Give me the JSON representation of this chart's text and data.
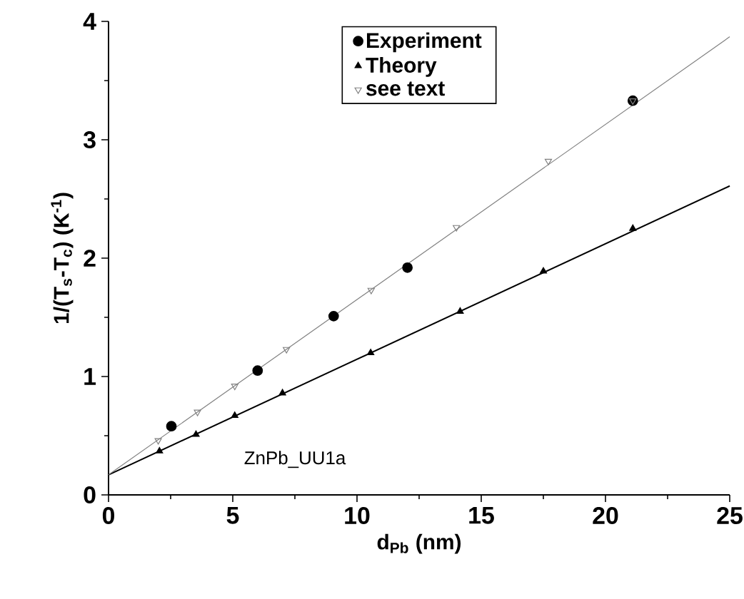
{
  "chart_data": {
    "type": "scatter",
    "xlabel": "d$_{Pb}$ (nm)",
    "ylabel": "1/(T$_{s}$-T$_{c}$)  (K$^{-1}$)",
    "xlim": [
      0,
      25
    ],
    "ylim": [
      0,
      4
    ],
    "xticks": [
      0,
      5,
      10,
      15,
      20,
      25
    ],
    "yticks": [
      0,
      1,
      2,
      3,
      4
    ],
    "legend": "top",
    "grid": false,
    "annotations": [
      "ZnPb_UU1a"
    ],
    "series": [
      {
        "type": "line",
        "color": "#000000",
        "x": [
          0,
          25
        ],
        "values": [
          0.17,
          2.61
        ],
        "marker": "none"
      },
      {
        "type": "line",
        "color": "#808080",
        "x": [
          0,
          25
        ],
        "values": [
          0.17,
          3.87
        ],
        "marker": "none"
      },
      {
        "name": "Experiment",
        "color": "#000000",
        "marker": "circle",
        "x": [
          2.53,
          6.0,
          9.06,
          12.03,
          21.1
        ],
        "values": [
          0.58,
          1.05,
          1.51,
          1.92,
          3.33
        ]
      },
      {
        "name": "Theory",
        "color": "#000000",
        "marker": "triangle",
        "x": [
          2.05,
          3.52,
          5.08,
          7.0,
          10.55,
          14.15,
          17.5,
          21.1
        ],
        "values": [
          0.37,
          0.51,
          0.67,
          0.86,
          1.2,
          1.55,
          1.89,
          2.25
        ]
      },
      {
        "name": "see text",
        "color": "#808080",
        "marker": "triangle_down",
        "x": [
          2.0,
          3.58,
          5.08,
          7.16,
          10.57,
          14.0,
          17.7,
          21.1
        ],
        "values": [
          0.46,
          0.7,
          0.92,
          1.23,
          1.73,
          2.26,
          2.82,
          3.33
        ]
      }
    ]
  }
}
